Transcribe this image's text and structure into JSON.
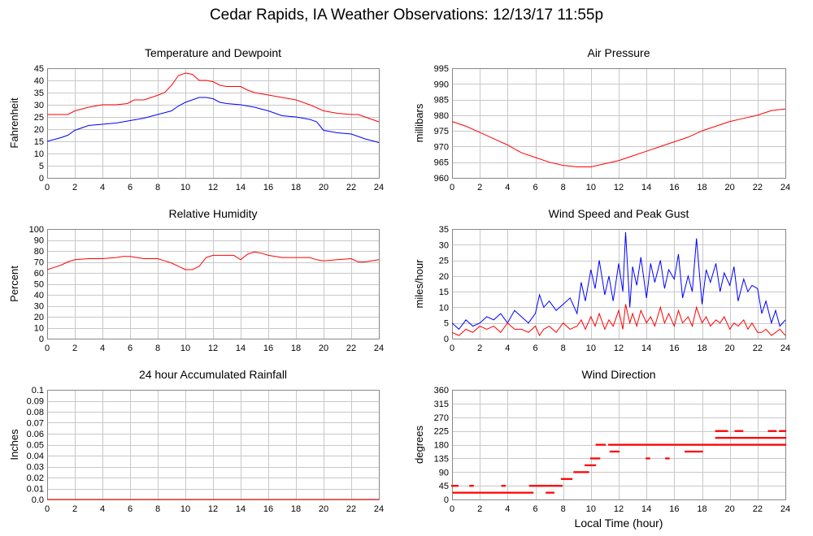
{
  "title": "Cedar Rapids, IA Weather Observations: 12/13/17 11:55p",
  "bottom_xlabel": "Local Time (hour)",
  "chart_data": [
    {
      "id": "temp",
      "type": "line",
      "title": "Temperature and Dewpoint",
      "ylabel": "Fahrenheit",
      "xlabel": "",
      "xlim": [
        0,
        24
      ],
      "ylim": [
        0,
        45
      ],
      "xticks": [
        0,
        2,
        4,
        6,
        8,
        10,
        12,
        14,
        16,
        18,
        20,
        22,
        24
      ],
      "yticks": [
        0,
        5,
        10,
        15,
        20,
        25,
        30,
        35,
        40,
        45
      ],
      "ytick_labels": [
        "0",
        "5",
        "10",
        "15",
        "20",
        "25",
        "30",
        "35",
        "40",
        "45"
      ],
      "series": [
        {
          "color": "#ff0000",
          "x": [
            0,
            1,
            1.5,
            2,
            3,
            4,
            5,
            5.8,
            6.3,
            7,
            7.8,
            8.5,
            9,
            9.5,
            10,
            10.5,
            11,
            11.5,
            12,
            12.5,
            13,
            14,
            14.5,
            15,
            16,
            17,
            18,
            19,
            20,
            21,
            22,
            22.5,
            23,
            24
          ],
          "y": [
            26,
            26,
            26,
            27.5,
            29,
            30,
            30,
            30.5,
            32,
            32,
            33.5,
            35,
            38,
            42,
            43,
            42.5,
            40,
            40,
            39.5,
            38,
            37.5,
            37.5,
            36,
            35,
            34,
            33,
            32,
            30,
            27.5,
            26.5,
            26,
            26,
            25,
            23
          ]
        },
        {
          "color": "#0000ff",
          "x": [
            0,
            1,
            1.5,
            2,
            3,
            4,
            5,
            6,
            7,
            8,
            9,
            9.5,
            10,
            10.5,
            11,
            11.5,
            12,
            12.5,
            13,
            14,
            15,
            16,
            17,
            18,
            19,
            19.5,
            20,
            21,
            22,
            23,
            24
          ],
          "y": [
            15,
            16.5,
            17.5,
            19.5,
            21.5,
            22,
            22.5,
            23.5,
            24.5,
            26,
            27.5,
            29.5,
            31,
            32,
            33,
            33,
            32.5,
            31,
            30.5,
            30,
            29,
            27.5,
            25.5,
            25,
            24,
            23,
            19.5,
            18.5,
            18,
            16,
            14.5
          ]
        }
      ]
    },
    {
      "id": "pressure",
      "type": "line",
      "title": "Air Pressure",
      "ylabel": "millibars",
      "xlabel": "",
      "xlim": [
        0,
        24
      ],
      "ylim": [
        960,
        995
      ],
      "xticks": [
        0,
        2,
        4,
        6,
        8,
        10,
        12,
        14,
        16,
        18,
        20,
        22,
        24
      ],
      "yticks": [
        960,
        965,
        970,
        975,
        980,
        985,
        990,
        995
      ],
      "ytick_labels": [
        "960",
        "965",
        "970",
        "975",
        "980",
        "985",
        "990",
        "995"
      ],
      "series": [
        {
          "color": "#ff0000",
          "x": [
            0,
            1,
            2,
            3,
            4,
            5,
            6,
            7,
            8,
            9,
            10,
            11,
            12,
            13,
            14,
            15,
            16,
            17,
            18,
            19,
            20,
            21,
            22,
            23,
            24
          ],
          "y": [
            978,
            976.5,
            974.5,
            972.5,
            970.5,
            968,
            966.5,
            965,
            964,
            963.5,
            963.5,
            964.5,
            965.5,
            967,
            968.5,
            970,
            971.5,
            973,
            975,
            976.5,
            978,
            979,
            980,
            981.5,
            982
          ]
        }
      ]
    },
    {
      "id": "humidity",
      "type": "line",
      "title": "Relative Humidity",
      "ylabel": "Percent",
      "xlabel": "",
      "xlim": [
        0,
        24
      ],
      "ylim": [
        0,
        100
      ],
      "xticks": [
        0,
        2,
        4,
        6,
        8,
        10,
        12,
        14,
        16,
        18,
        20,
        22,
        24
      ],
      "yticks": [
        0,
        10,
        20,
        30,
        40,
        50,
        60,
        70,
        80,
        90,
        100
      ],
      "ytick_labels": [
        "0",
        "10",
        "20",
        "30",
        "40",
        "50",
        "60",
        "70",
        "80",
        "90",
        "100"
      ],
      "series": [
        {
          "color": "#ff0000",
          "x": [
            0,
            0.5,
            1,
            1.5,
            2,
            3,
            4,
            5,
            5.5,
            6,
            7,
            8,
            8.5,
            9,
            9.5,
            10,
            10.5,
            11,
            11.5,
            12,
            12.5,
            13,
            13.5,
            14,
            14.5,
            15,
            15.5,
            16,
            17,
            18,
            19,
            19.5,
            20,
            21,
            22,
            22.5,
            23,
            24
          ],
          "y": [
            63,
            65,
            67,
            70,
            72,
            73,
            73,
            74,
            75,
            75,
            73,
            73,
            71,
            69,
            66,
            63,
            63,
            66,
            74,
            76,
            76,
            76,
            76,
            72,
            77,
            79,
            78,
            76,
            74,
            74,
            74,
            72,
            71,
            72,
            73,
            70,
            70,
            72
          ]
        }
      ]
    },
    {
      "id": "wind",
      "type": "line",
      "title": "Wind Speed and Peak Gust",
      "ylabel": "miles/hour",
      "xlabel": "",
      "xlim": [
        0,
        24
      ],
      "ylim": [
        0,
        35
      ],
      "xticks": [
        0,
        2,
        4,
        6,
        8,
        10,
        12,
        14,
        16,
        18,
        20,
        22,
        24
      ],
      "yticks": [
        0,
        5,
        10,
        15,
        20,
        25,
        30,
        35
      ],
      "ytick_labels": [
        "0",
        "5",
        "10",
        "15",
        "20",
        "25",
        "30",
        "35"
      ],
      "series": [
        {
          "color": "#0000ff",
          "x": [
            0,
            0.5,
            1,
            1.5,
            2,
            2.5,
            3,
            3.5,
            4,
            4.5,
            5,
            5.5,
            6,
            6.3,
            6.6,
            7,
            7.5,
            8,
            8.5,
            9,
            9.3,
            9.6,
            10,
            10.3,
            10.6,
            11,
            11.3,
            11.6,
            12,
            12.3,
            12.5,
            12.8,
            13,
            13.3,
            13.6,
            14,
            14.3,
            14.6,
            15,
            15.3,
            15.6,
            16,
            16.3,
            16.6,
            17,
            17.3,
            17.6,
            18,
            18.3,
            18.6,
            19,
            19.3,
            19.6,
            20,
            20.3,
            20.6,
            21,
            21.3,
            21.6,
            22,
            22.3,
            22.6,
            23,
            23.3,
            23.6,
            24
          ],
          "y": [
            5,
            3,
            6,
            4,
            5,
            7,
            6,
            8,
            5,
            9,
            7,
            5,
            8,
            14,
            10,
            12,
            9,
            11,
            13,
            8,
            18,
            12,
            22,
            16,
            25,
            14,
            20,
            12,
            24,
            15,
            34,
            10,
            23,
            17,
            26,
            13,
            24,
            18,
            25,
            16,
            22,
            19,
            27,
            13,
            20,
            15,
            32,
            11,
            22,
            18,
            24,
            15,
            21,
            17,
            23,
            12,
            19,
            15,
            17,
            16,
            8,
            12,
            5,
            9,
            4,
            6
          ]
        },
        {
          "color": "#ff0000",
          "x": [
            0,
            0.5,
            1,
            1.5,
            2,
            2.5,
            3,
            3.5,
            4,
            4.5,
            5,
            5.5,
            6,
            6.3,
            6.6,
            7,
            7.5,
            8,
            8.5,
            9,
            9.3,
            9.6,
            10,
            10.3,
            10.6,
            11,
            11.3,
            11.6,
            12,
            12.3,
            12.5,
            12.8,
            13,
            13.3,
            13.6,
            14,
            14.3,
            14.6,
            15,
            15.3,
            15.6,
            16,
            16.3,
            16.6,
            17,
            17.3,
            17.6,
            18,
            18.3,
            18.6,
            19,
            19.3,
            19.6,
            20,
            20.3,
            20.6,
            21,
            21.3,
            21.6,
            22,
            22.3,
            22.6,
            23,
            23.3,
            23.6,
            24
          ],
          "y": [
            2,
            1,
            3,
            2,
            4,
            3,
            4,
            2,
            5,
            3,
            3,
            2,
            4,
            1,
            3,
            4,
            2,
            5,
            3,
            4,
            6,
            3,
            7,
            4,
            8,
            3,
            6,
            4,
            9,
            3,
            11,
            5,
            8,
            4,
            9,
            5,
            7,
            4,
            10,
            5,
            8,
            4,
            9,
            5,
            7,
            4,
            10,
            5,
            7,
            4,
            6,
            5,
            7,
            3,
            5,
            4,
            6,
            3,
            5,
            2,
            2,
            3,
            1,
            2,
            3,
            1
          ]
        }
      ]
    },
    {
      "id": "rain",
      "type": "line",
      "title": "24 hour Accumulated Rainfall",
      "ylabel": "Inches",
      "xlabel": "",
      "xlim": [
        0,
        24
      ],
      "ylim": [
        0,
        0.1
      ],
      "xticks": [
        0,
        2,
        4,
        6,
        8,
        10,
        12,
        14,
        16,
        18,
        20,
        22,
        24
      ],
      "yticks": [
        0,
        0.01,
        0.02,
        0.03,
        0.04,
        0.05,
        0.06,
        0.07,
        0.08,
        0.09,
        0.1
      ],
      "ytick_labels": [
        "0.0",
        "0.01",
        "0.02",
        "0.03",
        "0.04",
        "0.05",
        "0.06",
        "0.07",
        "0.08",
        "0.09",
        "0.1"
      ],
      "series": [
        {
          "color": "#ff0000",
          "x": [
            0,
            24
          ],
          "y": [
            0,
            0
          ]
        }
      ]
    },
    {
      "id": "direction",
      "type": "scatter",
      "title": "Wind Direction",
      "ylabel": "degrees",
      "xlabel": "Local Time (hour)",
      "xlim": [
        0,
        24
      ],
      "ylim": [
        0,
        360
      ],
      "xticks": [
        0,
        2,
        4,
        6,
        8,
        10,
        12,
        14,
        16,
        18,
        20,
        22,
        24
      ],
      "yticks": [
        0,
        45,
        90,
        135,
        180,
        225,
        270,
        315,
        360
      ],
      "ytick_labels": [
        "0",
        "45",
        "90",
        "135",
        "180",
        "225",
        "270",
        "315",
        "360"
      ],
      "series": [
        {
          "color": "#ff0000",
          "segments": [
            {
              "x0": 0.1,
              "x1": 5.8,
              "y": 22.5
            },
            {
              "x0": 0.0,
              "x1": 0.4,
              "y": 45
            },
            {
              "x0": 1.3,
              "x1": 1.5,
              "y": 45
            },
            {
              "x0": 3.6,
              "x1": 3.8,
              "y": 45
            },
            {
              "x0": 5.6,
              "x1": 7.9,
              "y": 45
            },
            {
              "x0": 6.8,
              "x1": 7.3,
              "y": 22.5
            },
            {
              "x0": 7.9,
              "x1": 8.6,
              "y": 67.5
            },
            {
              "x0": 8.8,
              "x1": 9.8,
              "y": 90
            },
            {
              "x0": 9.6,
              "x1": 10.3,
              "y": 112.5
            },
            {
              "x0": 10.0,
              "x1": 10.6,
              "y": 135
            },
            {
              "x0": 10.4,
              "x1": 11.0,
              "y": 180
            },
            {
              "x0": 11.3,
              "x1": 19.0,
              "y": 180
            },
            {
              "x0": 11.4,
              "x1": 12.0,
              "y": 157.5
            },
            {
              "x0": 16.8,
              "x1": 18.0,
              "y": 157.5
            },
            {
              "x0": 14.0,
              "x1": 14.2,
              "y": 135
            },
            {
              "x0": 15.4,
              "x1": 15.6,
              "y": 135
            },
            {
              "x0": 19.0,
              "x1": 24.0,
              "y": 180
            },
            {
              "x0": 19.0,
              "x1": 24.0,
              "y": 202.5
            },
            {
              "x0": 19.0,
              "x1": 19.8,
              "y": 225
            },
            {
              "x0": 20.4,
              "x1": 20.9,
              "y": 225
            },
            {
              "x0": 22.8,
              "x1": 23.3,
              "y": 225
            },
            {
              "x0": 23.6,
              "x1": 24.0,
              "y": 225
            }
          ]
        }
      ]
    }
  ]
}
